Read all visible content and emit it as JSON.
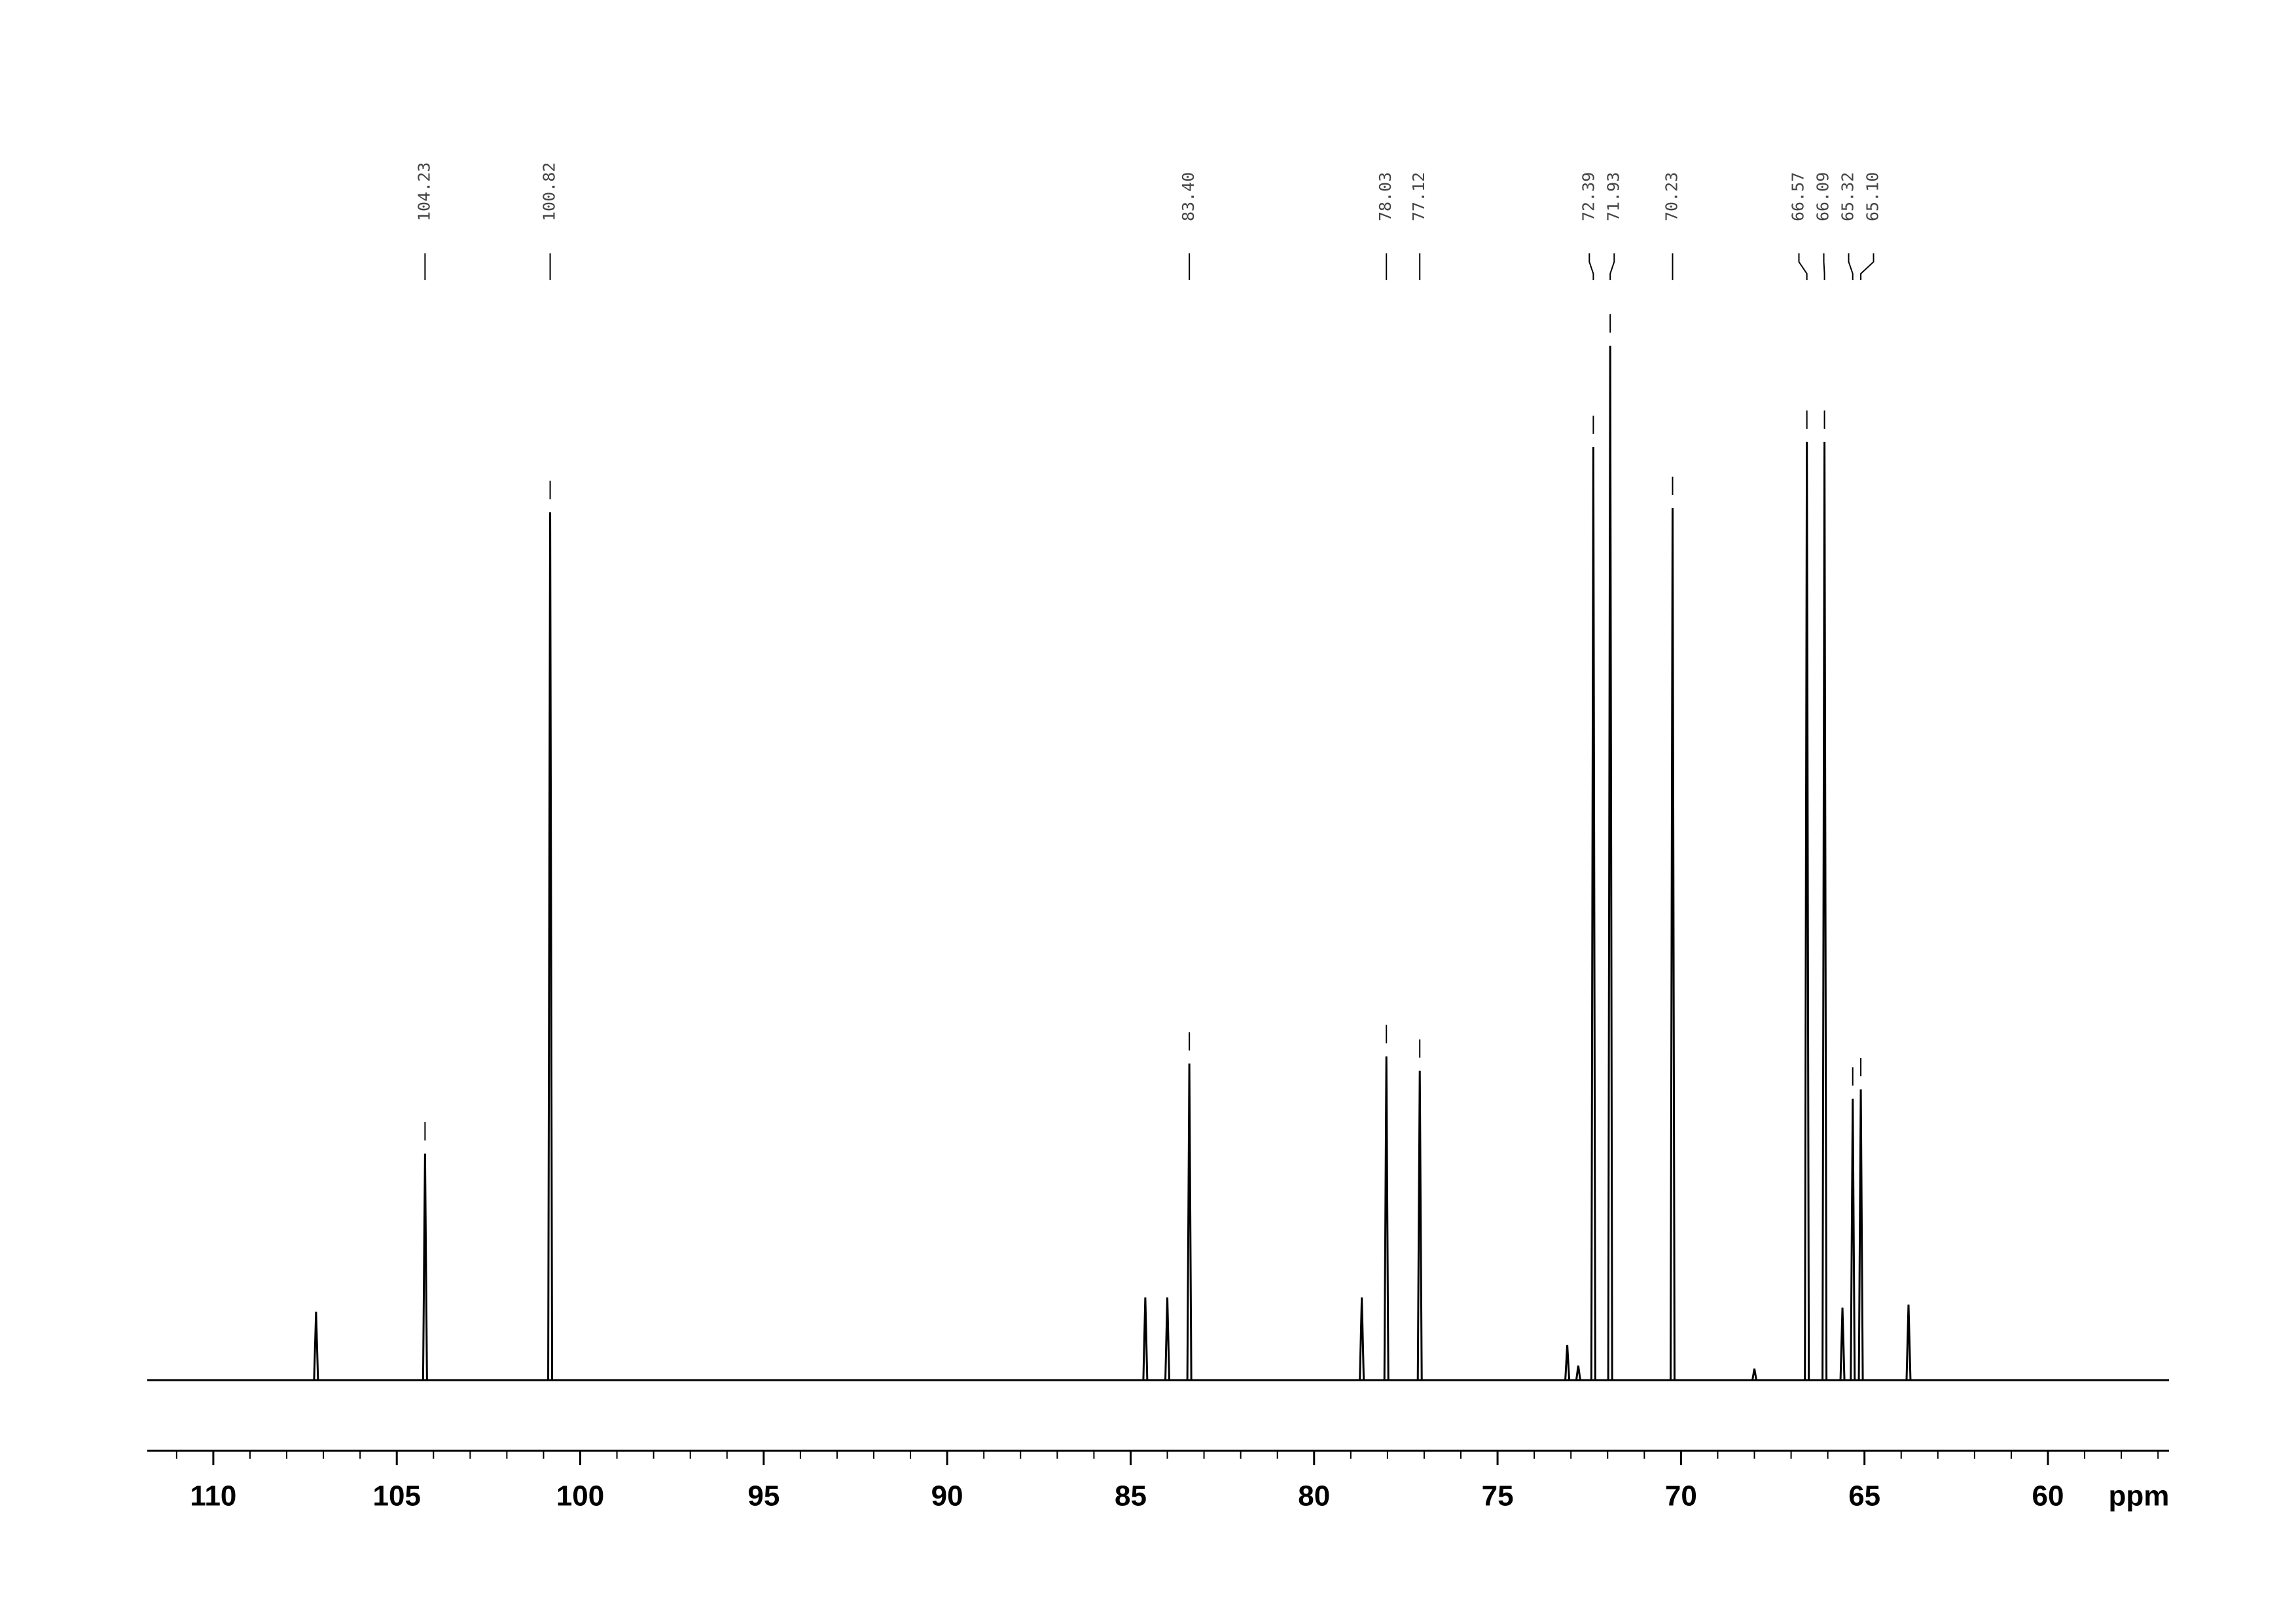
{
  "chart_data": {
    "type": "nmr",
    "x": [
      107.2,
      104.23,
      100.82,
      84.6,
      84.0,
      83.4,
      78.7,
      78.03,
      77.12,
      73.1,
      72.8,
      72.39,
      71.93,
      70.23,
      68.0,
      66.57,
      66.09,
      65.6,
      65.32,
      65.1,
      63.8
    ],
    "x_labels": [
      null,
      "104.23",
      "100.82",
      null,
      null,
      "83.40",
      null,
      "78.03",
      "77.12",
      null,
      null,
      "72.39",
      "71.93",
      "70.23",
      null,
      "66.57",
      "66.09",
      null,
      "65.32",
      "65.10",
      null
    ],
    "values": [
      6.6,
      21.9,
      83.9,
      8.0,
      8.0,
      30.6,
      8.0,
      31.3,
      29.9,
      3.4,
      1.4,
      90.2,
      100,
      84.3,
      1.1,
      90.7,
      90.7,
      7.0,
      27.2,
      28.1,
      7.3
    ],
    "color": "#000000",
    "xlabel": "ppm",
    "xlim": [
      111.8,
      56.7
    ],
    "xticks": [
      110,
      105,
      100,
      95,
      90,
      85,
      80,
      75,
      70,
      65,
      60
    ],
    "xminorticks": [
      111,
      109,
      108,
      107,
      106,
      104,
      103,
      102,
      101,
      99,
      98,
      97,
      96,
      94,
      93,
      92,
      91,
      89,
      88,
      87,
      86,
      84,
      83,
      82,
      81,
      79,
      78,
      77,
      76,
      74,
      73,
      72,
      71,
      69,
      68,
      67,
      66,
      64,
      63,
      62,
      61,
      59,
      58,
      57
    ]
  }
}
